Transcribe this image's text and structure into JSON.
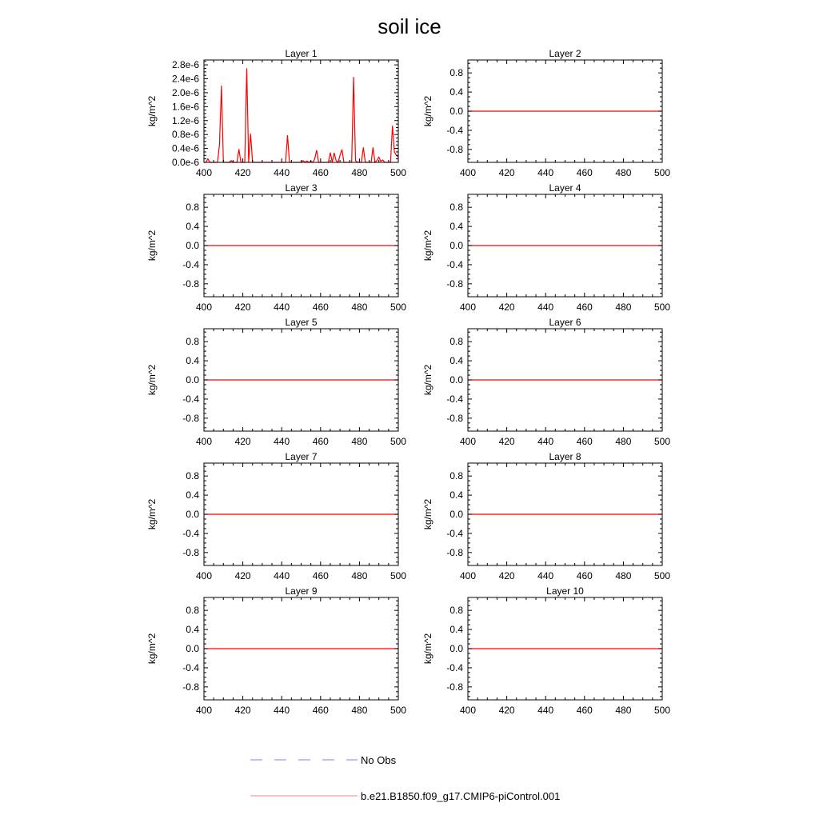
{
  "title": "soil ice",
  "legend": {
    "entries": [
      {
        "label": "No Obs",
        "color": "#8080ff",
        "style": "dashed"
      },
      {
        "label": "b.e21.B1850.f09_g17.CMIP6-piControl.001",
        "color": "#ff8080",
        "style": "solid"
      }
    ],
    "placement": "bottom"
  },
  "chart_data": [
    {
      "type": "line",
      "title": "Layer 1",
      "ylabel": "kg/m^2",
      "xlabel": "",
      "xlim": [
        400,
        500
      ],
      "ylim": [
        0,
        2.94e-06
      ],
      "xticks": [
        400,
        420,
        440,
        460,
        480,
        500
      ],
      "xtick_labels": [
        "400",
        "420",
        "440",
        "460",
        "480",
        "500"
      ],
      "yticks": [
        0,
        4e-07,
        8e-07,
        1.2e-06,
        1.6e-06,
        2e-06,
        2.4e-06,
        2.8e-06
      ],
      "ytick_labels": [
        "0.0e-6",
        "0.4e-6",
        "0.8e-6",
        "1.2e-6",
        "1.6e-6",
        "2.0e-6",
        "2.4e-6",
        "2.8e-6"
      ],
      "series": [
        {
          "name": "b.e21.B1850.f09_g17.CMIP6-piControl.001",
          "color": "#ff0000",
          "x_start": 400,
          "x_step": 1,
          "values": [
            0,
            0,
            1e-07,
            0,
            0,
            0,
            0,
            0,
            5e-07,
            2.2e-06,
            0,
            0,
            0,
            0,
            5e-08,
            0,
            0,
            0,
            3.8e-07,
            0,
            0,
            0,
            2.7e-06,
            0,
            8.2e-07,
            0,
            0,
            0,
            0,
            0,
            0,
            0,
            0,
            0,
            0,
            0,
            0,
            0,
            0,
            0,
            0,
            0,
            0,
            7.8e-07,
            0,
            0,
            0,
            0,
            0,
            0,
            0,
            5e-08,
            0,
            4e-08,
            0,
            3e-08,
            0,
            1e-07,
            3.5e-07,
            0,
            0,
            0,
            0,
            0,
            0,
            2.8e-07,
            0,
            2.7e-07,
            5e-08,
            0,
            2e-07,
            3.7e-07,
            0,
            0,
            0,
            0,
            0,
            2.45e-06,
            5e-08,
            0,
            0,
            0,
            4.3e-07,
            0,
            0,
            0,
            0,
            4.3e-07,
            0,
            5e-08,
            1.5e-07,
            3e-08,
            7e-08,
            0,
            0,
            0,
            0,
            1.05e-06,
            3e-07,
            2e-07,
            1.5e-07
          ]
        }
      ]
    },
    {
      "type": "line",
      "title": "Layer 2",
      "ylabel": "kg/m^2",
      "xlim": [
        400,
        500
      ],
      "ylim": [
        -1.07,
        1.07
      ],
      "xticks": [
        400,
        420,
        440,
        460,
        480,
        500
      ],
      "xtick_labels": [
        "400",
        "420",
        "440",
        "460",
        "480",
        "500"
      ],
      "yticks": [
        -0.8,
        -0.4,
        0,
        0.4,
        0.8
      ],
      "ytick_labels": [
        "-0.8",
        "-0.4",
        "0.0",
        "0.4",
        "0.8"
      ],
      "series": [
        {
          "name": "b.e21.B1850.f09_g17.CMIP6-piControl.001",
          "color": "#ff0000",
          "x": [
            400,
            500
          ],
          "values": [
            0,
            0
          ]
        }
      ]
    },
    {
      "type": "line",
      "title": "Layer 3",
      "ylabel": "kg/m^2",
      "xlim": [
        400,
        500
      ],
      "ylim": [
        -1.07,
        1.07
      ],
      "xticks": [
        400,
        420,
        440,
        460,
        480,
        500
      ],
      "xtick_labels": [
        "400",
        "420",
        "440",
        "460",
        "480",
        "500"
      ],
      "yticks": [
        -0.8,
        -0.4,
        0,
        0.4,
        0.8
      ],
      "ytick_labels": [
        "-0.8",
        "-0.4",
        "0.0",
        "0.4",
        "0.8"
      ],
      "series": [
        {
          "name": "b.e21.B1850.f09_g17.CMIP6-piControl.001",
          "color": "#ff0000",
          "x": [
            400,
            500
          ],
          "values": [
            0,
            0
          ]
        }
      ]
    },
    {
      "type": "line",
      "title": "Layer 4",
      "ylabel": "kg/m^2",
      "xlim": [
        400,
        500
      ],
      "ylim": [
        -1.07,
        1.07
      ],
      "xticks": [
        400,
        420,
        440,
        460,
        480,
        500
      ],
      "xtick_labels": [
        "400",
        "420",
        "440",
        "460",
        "480",
        "500"
      ],
      "yticks": [
        -0.8,
        -0.4,
        0,
        0.4,
        0.8
      ],
      "ytick_labels": [
        "-0.8",
        "-0.4",
        "0.0",
        "0.4",
        "0.8"
      ],
      "series": [
        {
          "name": "b.e21.B1850.f09_g17.CMIP6-piControl.001",
          "color": "#ff0000",
          "x": [
            400,
            500
          ],
          "values": [
            0,
            0
          ]
        }
      ]
    },
    {
      "type": "line",
      "title": "Layer 5",
      "ylabel": "kg/m^2",
      "xlim": [
        400,
        500
      ],
      "ylim": [
        -1.07,
        1.07
      ],
      "xticks": [
        400,
        420,
        440,
        460,
        480,
        500
      ],
      "xtick_labels": [
        "400",
        "420",
        "440",
        "460",
        "480",
        "500"
      ],
      "yticks": [
        -0.8,
        -0.4,
        0,
        0.4,
        0.8
      ],
      "ytick_labels": [
        "-0.8",
        "-0.4",
        "0.0",
        "0.4",
        "0.8"
      ],
      "series": [
        {
          "name": "b.e21.B1850.f09_g17.CMIP6-piControl.001",
          "color": "#ff0000",
          "x": [
            400,
            500
          ],
          "values": [
            0,
            0
          ]
        }
      ]
    },
    {
      "type": "line",
      "title": "Layer 6",
      "ylabel": "kg/m^2",
      "xlim": [
        400,
        500
      ],
      "ylim": [
        -1.07,
        1.07
      ],
      "xticks": [
        400,
        420,
        440,
        460,
        480,
        500
      ],
      "xtick_labels": [
        "400",
        "420",
        "440",
        "460",
        "480",
        "500"
      ],
      "yticks": [
        -0.8,
        -0.4,
        0,
        0.4,
        0.8
      ],
      "ytick_labels": [
        "-0.8",
        "-0.4",
        "0.0",
        "0.4",
        "0.8"
      ],
      "series": [
        {
          "name": "b.e21.B1850.f09_g17.CMIP6-piControl.001",
          "color": "#ff0000",
          "x": [
            400,
            500
          ],
          "values": [
            0,
            0
          ]
        }
      ]
    },
    {
      "type": "line",
      "title": "Layer 7",
      "ylabel": "kg/m^2",
      "xlim": [
        400,
        500
      ],
      "ylim": [
        -1.07,
        1.07
      ],
      "xticks": [
        400,
        420,
        440,
        460,
        480,
        500
      ],
      "xtick_labels": [
        "400",
        "420",
        "440",
        "460",
        "480",
        "500"
      ],
      "yticks": [
        -0.8,
        -0.4,
        0,
        0.4,
        0.8
      ],
      "ytick_labels": [
        "-0.8",
        "-0.4",
        "0.0",
        "0.4",
        "0.8"
      ],
      "series": [
        {
          "name": "b.e21.B1850.f09_g17.CMIP6-piControl.001",
          "color": "#ff0000",
          "x": [
            400,
            500
          ],
          "values": [
            0,
            0
          ]
        }
      ]
    },
    {
      "type": "line",
      "title": "Layer 8",
      "ylabel": "kg/m^2",
      "xlim": [
        400,
        500
      ],
      "ylim": [
        -1.07,
        1.07
      ],
      "xticks": [
        400,
        420,
        440,
        460,
        480,
        500
      ],
      "xtick_labels": [
        "400",
        "420",
        "440",
        "460",
        "480",
        "500"
      ],
      "yticks": [
        -0.8,
        -0.4,
        0,
        0.4,
        0.8
      ],
      "ytick_labels": [
        "-0.8",
        "-0.4",
        "0.0",
        "0.4",
        "0.8"
      ],
      "series": [
        {
          "name": "b.e21.B1850.f09_g17.CMIP6-piControl.001",
          "color": "#ff0000",
          "x": [
            400,
            500
          ],
          "values": [
            0,
            0
          ]
        }
      ]
    },
    {
      "type": "line",
      "title": "Layer 9",
      "ylabel": "kg/m^2",
      "xlim": [
        400,
        500
      ],
      "ylim": [
        -1.07,
        1.07
      ],
      "xticks": [
        400,
        420,
        440,
        460,
        480,
        500
      ],
      "xtick_labels": [
        "400",
        "420",
        "440",
        "460",
        "480",
        "500"
      ],
      "yticks": [
        -0.8,
        -0.4,
        0,
        0.4,
        0.8
      ],
      "ytick_labels": [
        "-0.8",
        "-0.4",
        "0.0",
        "0.4",
        "0.8"
      ],
      "series": [
        {
          "name": "b.e21.B1850.f09_g17.CMIP6-piControl.001",
          "color": "#ff0000",
          "x": [
            400,
            500
          ],
          "values": [
            0,
            0
          ]
        }
      ]
    },
    {
      "type": "line",
      "title": "Layer 10",
      "ylabel": "kg/m^2",
      "xlim": [
        400,
        500
      ],
      "ylim": [
        -1.07,
        1.07
      ],
      "xticks": [
        400,
        420,
        440,
        460,
        480,
        500
      ],
      "xtick_labels": [
        "400",
        "420",
        "440",
        "460",
        "480",
        "500"
      ],
      "yticks": [
        -0.8,
        -0.4,
        0,
        0.4,
        0.8
      ],
      "ytick_labels": [
        "-0.8",
        "-0.4",
        "0.0",
        "0.4",
        "0.8"
      ],
      "series": [
        {
          "name": "b.e21.B1850.f09_g17.CMIP6-piControl.001",
          "color": "#ff0000",
          "x": [
            400,
            500
          ],
          "values": [
            0,
            0
          ]
        }
      ]
    }
  ]
}
